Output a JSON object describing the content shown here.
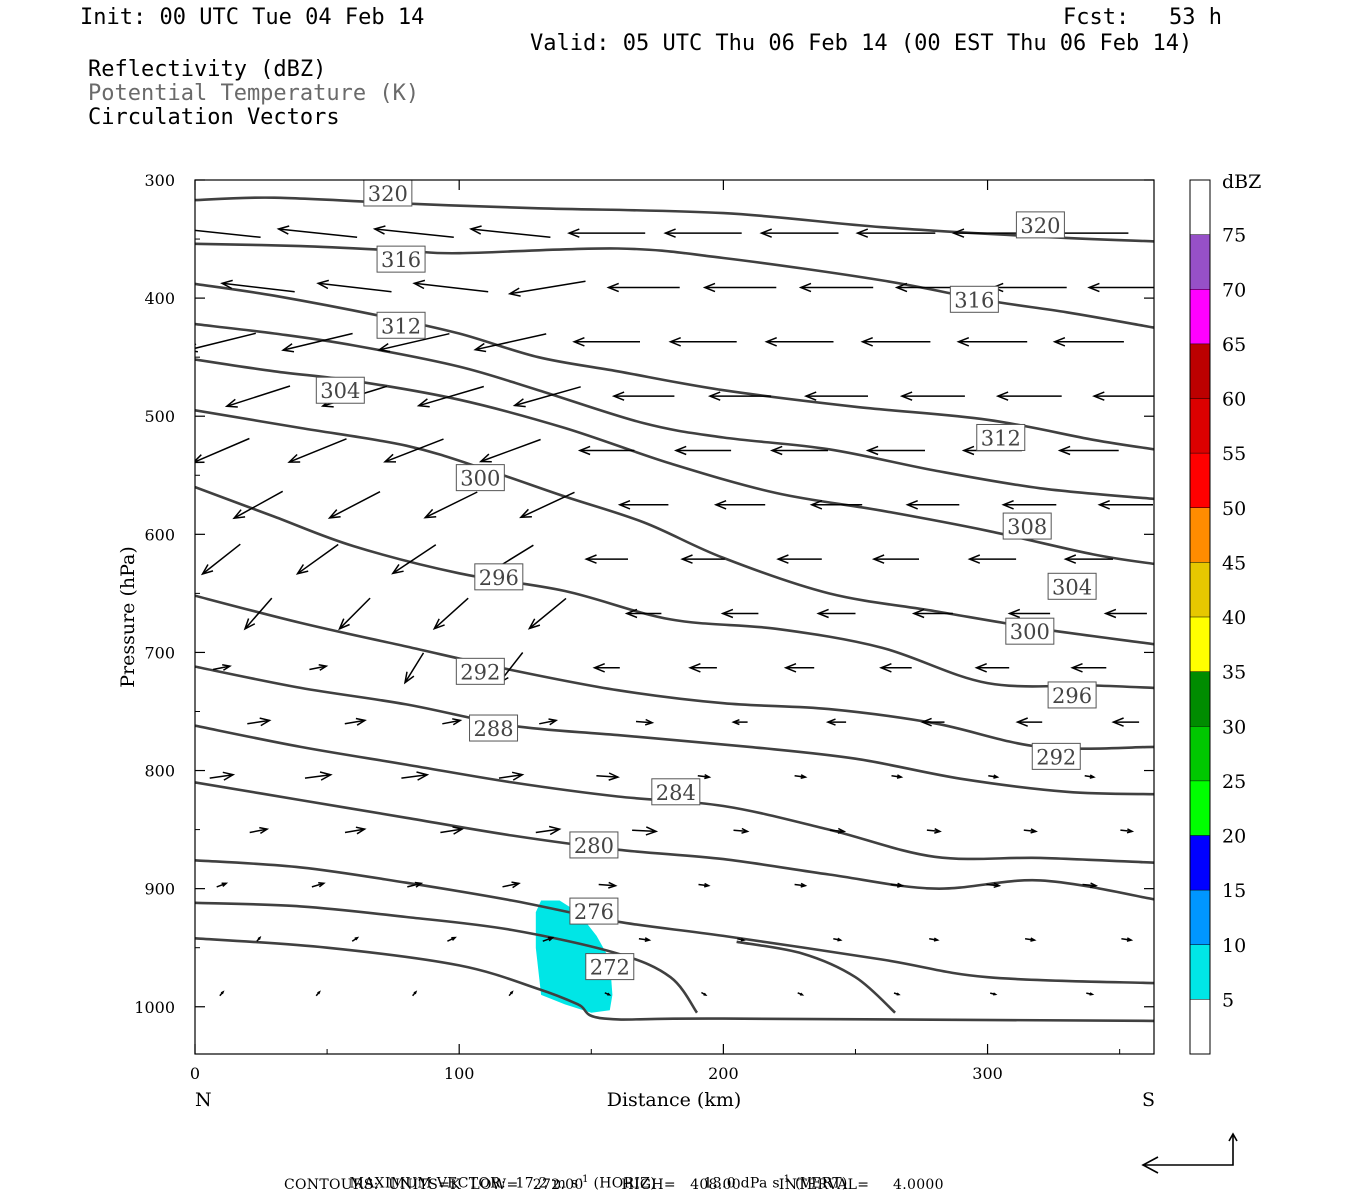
{
  "header": {
    "init": "Init: 00 UTC Tue 04 Feb 14",
    "fcst": "Fcst:   53 h",
    "valid": "Valid: 05 UTC Thu 06 Feb 14 (00 EST Thu 06 Feb 14)",
    "field1": "Reflectivity (dBZ)",
    "field2": "Potential Temperature (K)",
    "field3": "Circulation Vectors"
  },
  "footer": {
    "maxvec_prefix": "MAXIMUM VECTOR:  17.2 m s",
    "maxvec_mid": " (HORIZ)          13.0 dPa s",
    "maxvec_suffix": " (VERT)",
    "exp": "-1",
    "contours": "CONTOURS:  UNITS=K  LOW=   272.00        HIGH=   408.00        INTERVAL=     4.0000"
  },
  "colors": {
    "contour": "#404040",
    "reflectivity_5": "#00e6e6"
  },
  "chart_data": {
    "type": "contour",
    "xlabel": "Distance (km)",
    "ylabel": "Pressure (hPa)",
    "xlim": [
      0,
      363
    ],
    "ylim": [
      1040,
      300
    ],
    "xticks": [
      0,
      100,
      200,
      300
    ],
    "yticks": [
      300,
      400,
      500,
      600,
      700,
      800,
      900,
      1000
    ],
    "x_endpoints": {
      "left": "N",
      "right": "S"
    },
    "colorbar": {
      "title": "dBZ",
      "levels": [
        5,
        10,
        15,
        20,
        25,
        30,
        35,
        40,
        45,
        50,
        55,
        60,
        65,
        70,
        75
      ],
      "colors": [
        "#00e6e6",
        "#0096ff",
        "#0000ff",
        "#00ff00",
        "#00c800",
        "#008c00",
        "#ffff00",
        "#e6c800",
        "#ff8c00",
        "#ff0000",
        "#dc0000",
        "#bc0000",
        "#ff00ff",
        "#9650c8",
        "#ffffff"
      ]
    },
    "theta_contours": [
      {
        "value": 320,
        "label": "320",
        "points": [
          [
            0,
            317
          ],
          [
            30,
            315
          ],
          [
            80,
            320
          ],
          [
            130,
            324
          ],
          [
            200,
            328
          ],
          [
            260,
            340
          ],
          [
            320,
            348
          ],
          [
            363,
            352
          ]
        ],
        "label_at": [
          [
            73,
            311
          ],
          [
            320,
            338
          ]
        ]
      },
      {
        "value": 316,
        "label": "316",
        "points": [
          [
            0,
            354
          ],
          [
            40,
            356
          ],
          [
            80,
            360
          ],
          [
            100,
            362
          ],
          [
            160,
            358
          ],
          [
            200,
            366
          ],
          [
            260,
            385
          ],
          [
            300,
            402
          ],
          [
            330,
            412
          ],
          [
            363,
            425
          ]
        ],
        "label_at": [
          [
            78,
            367
          ],
          [
            295,
            401
          ]
        ]
      },
      {
        "value": 312,
        "label": "312",
        "points": [
          [
            0,
            388
          ],
          [
            30,
            398
          ],
          [
            70,
            415
          ],
          [
            100,
            430
          ],
          [
            130,
            450
          ],
          [
            160,
            462
          ],
          [
            200,
            478
          ],
          [
            250,
            492
          ],
          [
            300,
            503
          ],
          [
            340,
            520
          ],
          [
            363,
            528
          ]
        ],
        "label_at": [
          [
            78,
            423
          ],
          [
            305,
            518
          ]
        ]
      },
      {
        "value": 308,
        "label": "308",
        "points": [
          [
            0,
            422
          ],
          [
            30,
            430
          ],
          [
            60,
            440
          ],
          [
            100,
            458
          ],
          [
            130,
            478
          ],
          [
            170,
            506
          ],
          [
            200,
            518
          ],
          [
            240,
            528
          ],
          [
            280,
            546
          ],
          [
            320,
            561
          ],
          [
            363,
            570
          ]
        ],
        "label_at": [
          [
            315,
            593
          ]
        ]
      },
      {
        "value": 304,
        "label": "304",
        "points": [
          [
            0,
            452
          ],
          [
            30,
            462
          ],
          [
            60,
            470
          ],
          [
            100,
            486
          ],
          [
            140,
            510
          ],
          [
            180,
            540
          ],
          [
            220,
            565
          ],
          [
            260,
            580
          ],
          [
            300,
            597
          ],
          [
            340,
            617
          ],
          [
            363,
            625
          ]
        ],
        "label_at": [
          [
            55,
            478
          ],
          [
            332,
            644
          ]
        ]
      },
      {
        "value": 300,
        "label": "300",
        "points": [
          [
            0,
            495
          ],
          [
            40,
            510
          ],
          [
            80,
            525
          ],
          [
            110,
            545
          ],
          [
            140,
            568
          ],
          [
            170,
            590
          ],
          [
            200,
            620
          ],
          [
            240,
            650
          ],
          [
            280,
            665
          ],
          [
            320,
            680
          ],
          [
            363,
            693
          ]
        ],
        "label_at": [
          [
            108,
            552
          ],
          [
            316,
            682
          ]
        ]
      },
      {
        "value": 296,
        "label": "296",
        "points": [
          [
            0,
            560
          ],
          [
            30,
            585
          ],
          [
            60,
            610
          ],
          [
            100,
            633
          ],
          [
            140,
            648
          ],
          [
            180,
            672
          ],
          [
            220,
            680
          ],
          [
            260,
            696
          ],
          [
            300,
            726
          ],
          [
            340,
            728
          ],
          [
            363,
            730
          ]
        ],
        "label_at": [
          [
            115,
            636
          ],
          [
            332,
            736
          ]
        ]
      },
      {
        "value": 292,
        "label": "292",
        "points": [
          [
            0,
            652
          ],
          [
            40,
            675
          ],
          [
            80,
            695
          ],
          [
            120,
            715
          ],
          [
            160,
            732
          ],
          [
            200,
            743
          ],
          [
            240,
            748
          ],
          [
            280,
            760
          ],
          [
            320,
            780
          ],
          [
            363,
            780
          ]
        ],
        "label_at": [
          [
            108,
            716
          ],
          [
            326,
            788
          ]
        ]
      },
      {
        "value": 288,
        "label": "288",
        "points": [
          [
            0,
            712
          ],
          [
            40,
            730
          ],
          [
            80,
            744
          ],
          [
            120,
            762
          ],
          [
            160,
            770
          ],
          [
            210,
            780
          ],
          [
            250,
            790
          ],
          [
            290,
            807
          ],
          [
            330,
            818
          ],
          [
            363,
            820
          ]
        ],
        "label_at": [
          [
            113,
            764
          ]
        ]
      },
      {
        "value": 284,
        "label": "284",
        "points": [
          [
            0,
            762
          ],
          [
            40,
            780
          ],
          [
            80,
            795
          ],
          [
            120,
            810
          ],
          [
            160,
            822
          ],
          [
            200,
            830
          ],
          [
            240,
            850
          ],
          [
            280,
            873
          ],
          [
            320,
            874
          ],
          [
            363,
            878
          ]
        ],
        "label_at": [
          [
            182,
            818
          ]
        ]
      },
      {
        "value": 280,
        "label": "280",
        "points": [
          [
            0,
            810
          ],
          [
            40,
            825
          ],
          [
            80,
            840
          ],
          [
            120,
            855
          ],
          [
            160,
            867
          ],
          [
            200,
            875
          ],
          [
            240,
            888
          ],
          [
            280,
            900
          ],
          [
            320,
            893
          ],
          [
            363,
            909
          ]
        ],
        "label_at": [
          [
            151,
            863
          ]
        ]
      },
      {
        "value": 276,
        "label": "276",
        "points": [
          [
            0,
            876
          ],
          [
            40,
            882
          ],
          [
            80,
            895
          ],
          [
            120,
            910
          ],
          [
            160,
            928
          ],
          [
            200,
            940
          ],
          [
            260,
            960
          ],
          [
            300,
            975
          ],
          [
            363,
            980
          ]
        ],
        "label_at": [
          [
            151,
            919
          ]
        ]
      },
      {
        "value": 272,
        "label": "272",
        "points": [
          [
            0,
            912
          ],
          [
            40,
            915
          ],
          [
            80,
            924
          ],
          [
            120,
            935
          ],
          [
            160,
            955
          ],
          [
            180,
            975
          ],
          [
            190,
            1005
          ]
        ],
        "label_at": [
          [
            157,
            966
          ]
        ]
      },
      {
        "value": 272,
        "label": "",
        "points": [
          [
            0,
            942
          ],
          [
            50,
            950
          ],
          [
            100,
            965
          ],
          [
            130,
            985
          ],
          [
            145,
            998
          ],
          [
            155,
            1010
          ],
          [
            200,
            1010
          ],
          [
            363,
            1012
          ]
        ],
        "label_at": []
      },
      {
        "value": 272,
        "label": "",
        "points": [
          [
            205,
            945
          ],
          [
            230,
            955
          ],
          [
            250,
            975
          ],
          [
            265,
            1005
          ]
        ],
        "label_at": []
      }
    ],
    "reflectivity_areas": [
      {
        "dbz": 5,
        "polygon": [
          [
            131,
            910
          ],
          [
            138,
            910
          ],
          [
            145,
            920
          ],
          [
            152,
            940
          ],
          [
            157,
            960
          ],
          [
            158,
            990
          ],
          [
            157,
            1003
          ],
          [
            150,
            1005
          ],
          [
            140,
            998
          ],
          [
            131,
            990
          ],
          [
            129,
            950
          ],
          [
            129,
            920
          ]
        ]
      }
    ],
    "vectors_sample": [
      {
        "x": 25,
        "p": 325,
        "u": -17,
        "w": 0
      },
      {
        "x": 170,
        "p": 340,
        "u": -16,
        "w": 0
      },
      {
        "x": 300,
        "p": 396,
        "u": -16,
        "w": 0
      },
      {
        "x": 180,
        "p": 452,
        "u": -15,
        "w": 0
      },
      {
        "x": 320,
        "p": 570,
        "u": -12,
        "w": 0
      },
      {
        "x": 45,
        "p": 783,
        "u": 7,
        "w": 0
      },
      {
        "x": 118,
        "p": 800,
        "u": 7,
        "w": 0
      },
      {
        "x": 270,
        "p": 934,
        "u": 4,
        "w": 0
      },
      {
        "x": 330,
        "p": 1005,
        "u": 2,
        "w": 0
      }
    ],
    "reference_vector": {
      "horiz": "17.2 m s-1",
      "vert": "13.0 dPa s-1"
    }
  }
}
